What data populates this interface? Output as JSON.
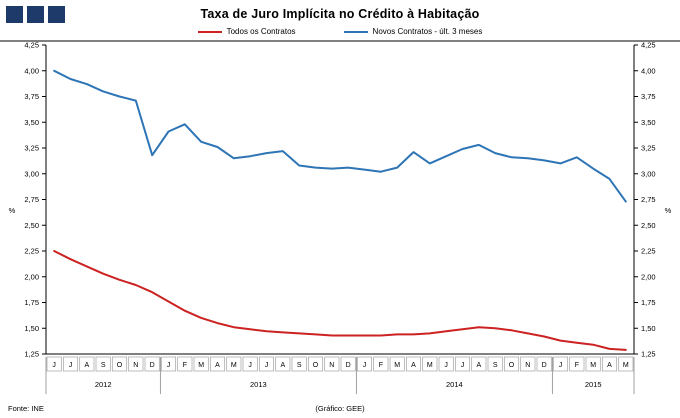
{
  "header": {
    "title": "Taxa de Juro Implícita no Crédito à Habitação"
  },
  "footer": {
    "source": "Fonte: INE",
    "credit": "(Gráfico: GEE)"
  },
  "colors": {
    "series_all_contracts": "#cc2222",
    "series_new_contracts": "#2e75b6",
    "logo_navy": "#1d3a6b",
    "axis": "#000000",
    "month_box_border": "#a6a6a6"
  },
  "chart_data": {
    "type": "line",
    "title": "Taxa de Juro Implícita no Crédito à Habitação",
    "xlabel": "",
    "ylabel_left": "%",
    "ylabel_right": "%",
    "ylim": [
      1.25,
      4.25
    ],
    "ytick_step": 0.25,
    "decimal_style": "comma",
    "grid": false,
    "legend_position": "top",
    "months": [
      "J",
      "J",
      "A",
      "S",
      "O",
      "N",
      "D",
      "J",
      "F",
      "M",
      "A",
      "M",
      "J",
      "J",
      "A",
      "S",
      "O",
      "N",
      "D",
      "J",
      "F",
      "M",
      "A",
      "M",
      "J",
      "J",
      "A",
      "S",
      "O",
      "N",
      "D",
      "J",
      "F",
      "M",
      "A",
      "M"
    ],
    "years": [
      {
        "label": "2012",
        "start": 0,
        "end": 6
      },
      {
        "label": "2013",
        "start": 7,
        "end": 18
      },
      {
        "label": "2014",
        "start": 19,
        "end": 30
      },
      {
        "label": "2015",
        "start": 31,
        "end": 35
      }
    ],
    "series": [
      {
        "name": "Todos os Contratos",
        "color": "#cc2222",
        "values": [
          2.25,
          2.17,
          2.1,
          2.03,
          1.97,
          1.92,
          1.85,
          1.76,
          1.67,
          1.6,
          1.55,
          1.51,
          1.49,
          1.47,
          1.46,
          1.45,
          1.44,
          1.43,
          1.43,
          1.43,
          1.43,
          1.44,
          1.44,
          1.45,
          1.47,
          1.49,
          1.51,
          1.5,
          1.48,
          1.45,
          1.42,
          1.38,
          1.36,
          1.34,
          1.3,
          1.29
        ]
      },
      {
        "name": "Novos Contratos - últ. 3 meses",
        "color": "#2e75b6",
        "values": [
          4.0,
          3.92,
          3.87,
          3.8,
          3.75,
          3.71,
          3.18,
          3.41,
          3.48,
          3.31,
          3.26,
          3.15,
          3.17,
          3.2,
          3.22,
          3.08,
          3.06,
          3.05,
          3.06,
          3.04,
          3.02,
          3.06,
          3.21,
          3.1,
          3.17,
          3.24,
          3.28,
          3.2,
          3.16,
          3.15,
          3.13,
          3.1,
          3.16,
          3.05,
          2.95,
          2.73
        ]
      }
    ]
  }
}
